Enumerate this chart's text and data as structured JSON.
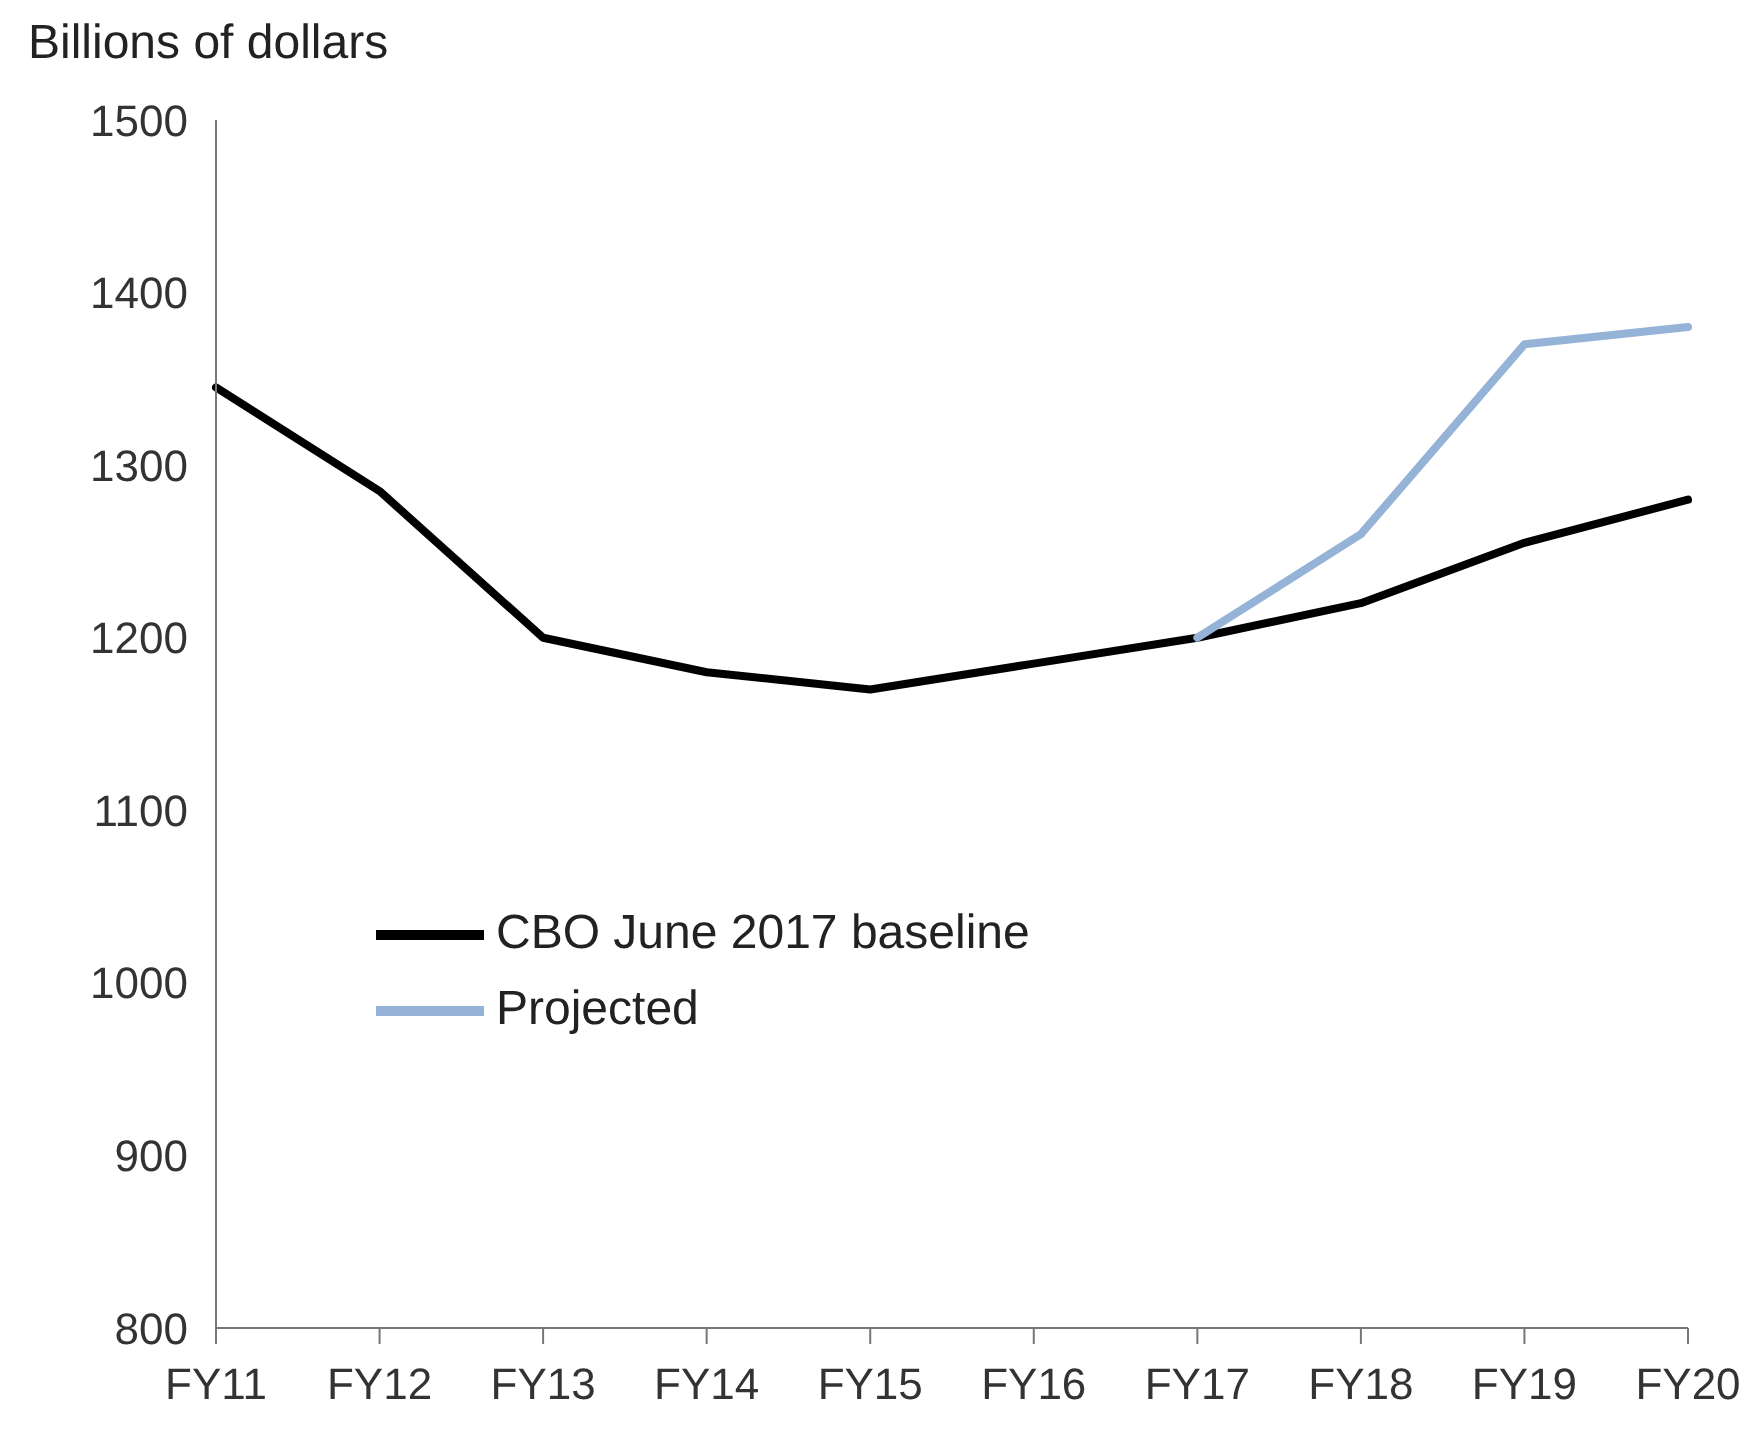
{
  "chart_data": {
    "type": "line",
    "ylabel": "Billions of dollars",
    "categories": [
      "FY11",
      "FY12",
      "FY13",
      "FY14",
      "FY15",
      "FY16",
      "FY17",
      "FY18",
      "FY19",
      "FY20"
    ],
    "series": [
      {
        "name": "CBO June 2017 baseline",
        "color": "#000000",
        "values": [
          1345,
          1285,
          1200,
          1180,
          1170,
          1185,
          1200,
          1220,
          1255,
          1280
        ]
      },
      {
        "name": "Projected",
        "color": "#95b3d7",
        "values": [
          null,
          null,
          null,
          null,
          null,
          null,
          1200,
          1260,
          1370,
          1380
        ]
      }
    ],
    "ylim": [
      800,
      1500
    ],
    "yticks": [
      800,
      900,
      1000,
      1100,
      1200,
      1300,
      1400,
      1500
    ],
    "grid": false,
    "legend": "left"
  }
}
